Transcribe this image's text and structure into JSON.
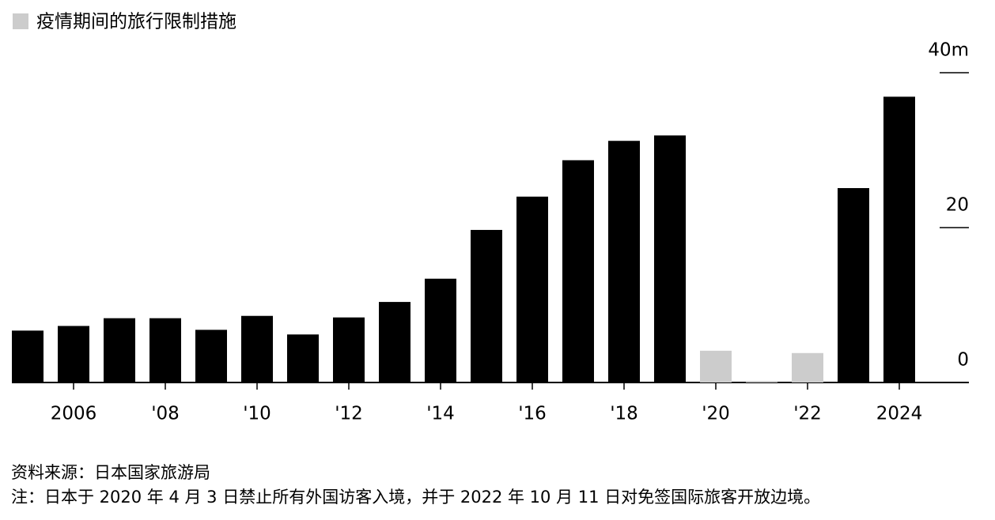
{
  "chart_data": {
    "type": "bar",
    "legend": {
      "label": "疫情期间的旅行限制措施",
      "color": "#cccccc"
    },
    "categories": [
      null,
      "2006",
      null,
      "'08",
      null,
      "'10",
      null,
      "'12",
      null,
      "'14",
      null,
      "'16",
      null,
      "'18",
      null,
      "'20",
      null,
      "'22",
      null,
      "2024"
    ],
    "values": [
      6.7,
      7.3,
      8.3,
      8.3,
      6.8,
      8.6,
      6.2,
      8.4,
      10.4,
      13.4,
      19.7,
      24.0,
      28.7,
      31.2,
      31.9,
      4.1,
      0.2,
      3.8,
      25.1,
      36.9
    ],
    "colors": [
      "#000000",
      "#000000",
      "#000000",
      "#000000",
      "#000000",
      "#000000",
      "#000000",
      "#000000",
      "#000000",
      "#000000",
      "#000000",
      "#000000",
      "#000000",
      "#000000",
      "#000000",
      "#cccccc",
      "#cccccc",
      "#cccccc",
      "#000000",
      "#000000"
    ],
    "ylim": [
      0,
      40
    ],
    "yticks": [
      0,
      20,
      {
        "value": 40,
        "label": "40m"
      }
    ],
    "source": "资料来源：日本国家旅游局",
    "note": "注：日本于 2020 年 4 月 3 日禁止所有外国访客入境，并于 2022 年 10 月 11 日对免签国际旅客开放边境。"
  }
}
